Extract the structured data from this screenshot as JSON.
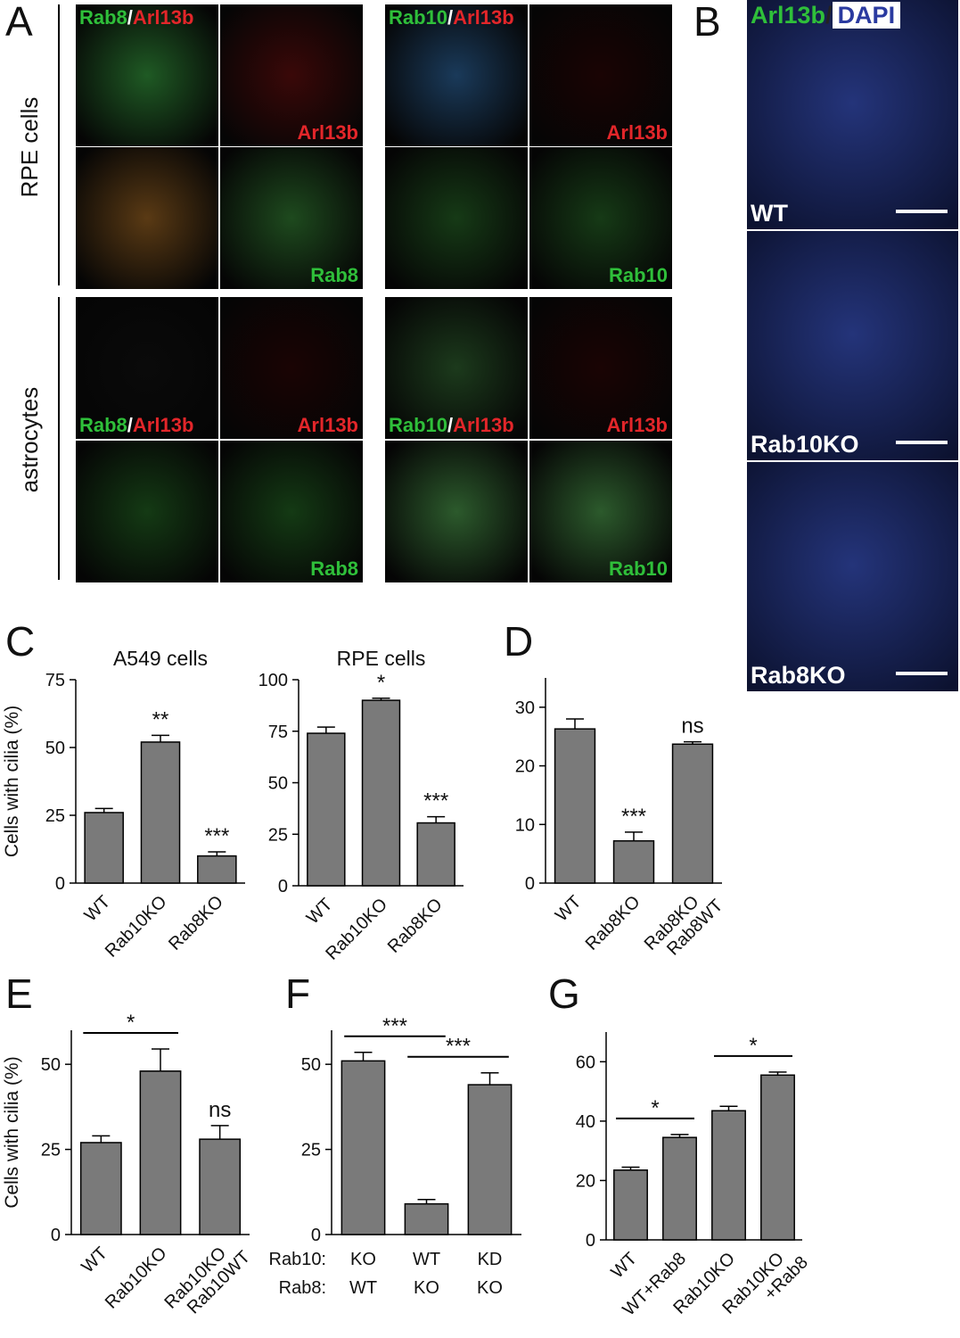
{
  "figure_a": {
    "letter": "A",
    "row_labels": [
      "RPE cells",
      "astrocytes"
    ],
    "groups": [
      {
        "tiles": [
          {
            "tint": "#1f5a24",
            "label": [
              "Rab8",
              "/",
              "Arl13b"
            ],
            "label_colors": [
              "#2fbf3a",
              "#ffffff",
              "#e3262a"
            ],
            "corner": "top-left"
          },
          {
            "tint": "#3a0808",
            "label": [
              "Arl13b"
            ],
            "label_colors": [
              "#e3262a"
            ],
            "corner": "bottom-right"
          },
          {
            "tint": "#5a3a14"
          },
          {
            "tint": "#1e4a1e",
            "label": [
              "Rab8"
            ],
            "label_colors": [
              "#2fbf3a"
            ],
            "corner": "bottom-right"
          },
          {
            "tint": "#0a0a0a",
            "label": [
              "Rab8",
              "/",
              "Arl13b"
            ],
            "label_colors": [
              "#2fbf3a",
              "#ffffff",
              "#e3262a"
            ],
            "corner": "bottom-left"
          },
          {
            "tint": "#1a0404",
            "label": [
              "Arl13b"
            ],
            "label_colors": [
              "#e3262a"
            ],
            "corner": "bottom-right"
          },
          {
            "tint": "#143a14"
          },
          {
            "tint": "#143a14",
            "label": [
              "Rab8"
            ],
            "label_colors": [
              "#2fbf3a"
            ],
            "corner": "bottom-right"
          }
        ]
      },
      {
        "tiles": [
          {
            "tint": "#1a3a5a",
            "label": [
              "Rab10",
              "/",
              "Arl13b"
            ],
            "label_colors": [
              "#2fbf3a",
              "#ffffff",
              "#e3262a"
            ],
            "corner": "top-left"
          },
          {
            "tint": "#1a0404",
            "label": [
              "Arl13b"
            ],
            "label_colors": [
              "#e3262a"
            ],
            "corner": "bottom-right"
          },
          {
            "tint": "#163a16"
          },
          {
            "tint": "#163a16",
            "label": [
              "Rab10"
            ],
            "label_colors": [
              "#2fbf3a"
            ],
            "corner": "bottom-right"
          },
          {
            "tint": "#1c3a1c",
            "label": [
              "Rab10",
              "/",
              "Arl13b"
            ],
            "label_colors": [
              "#2fbf3a",
              "#ffffff",
              "#e3262a"
            ],
            "corner": "bottom-left"
          },
          {
            "tint": "#1a0404",
            "label": [
              "Arl13b"
            ],
            "label_colors": [
              "#e3262a"
            ],
            "corner": "bottom-right"
          },
          {
            "tint": "#2c5a2c"
          },
          {
            "tint": "#2c5a2c",
            "label": [
              "Rab10"
            ],
            "label_colors": [
              "#2fbf3a"
            ],
            "corner": "bottom-right"
          }
        ]
      }
    ]
  },
  "figure_b": {
    "letter": "B",
    "header": [
      "Arl13b",
      "/",
      "DAPI"
    ],
    "header_colors": [
      "#2fbf3a",
      "#222222",
      "#2a3aa0"
    ],
    "tint": "#24347a",
    "tiles": [
      {
        "label": "WT"
      },
      {
        "label": "Rab10KO"
      },
      {
        "label": "Rab8KO"
      }
    ]
  },
  "chart_data": [
    {
      "type": "bar",
      "panel": "C",
      "title": "A549 cells",
      "y_label": "Cells with cilia (%)",
      "categories": [
        "WT",
        "Rab10KO",
        "Rab8KO"
      ],
      "values": [
        26,
        52,
        10
      ],
      "errors": [
        1.5,
        2.5,
        1.5
      ],
      "annotations": [
        null,
        "**",
        "***"
      ],
      "color": "#7a7a7a",
      "ylim": [
        0,
        75
      ],
      "yticks": [
        0,
        25,
        50,
        75
      ]
    },
    {
      "type": "bar",
      "title": "RPE cells",
      "categories": [
        "WT",
        "Rab10KO",
        "Rab8KO"
      ],
      "values": [
        74,
        90,
        30.5
      ],
      "errors": [
        3,
        1,
        3
      ],
      "annotations": [
        null,
        "*",
        "***"
      ],
      "color": "#7a7a7a",
      "ylim": [
        0,
        100
      ],
      "yticks": [
        0,
        25,
        50,
        75,
        100
      ]
    },
    {
      "type": "bar",
      "panel": "D",
      "categories": [
        "WT",
        "Rab8KO",
        "Rab8KO\nRab8WT"
      ],
      "values": [
        26.3,
        7.2,
        23.7
      ],
      "errors": [
        1.7,
        1.5,
        0.4
      ],
      "annotations": [
        null,
        "***",
        "ns"
      ],
      "color": "#7a7a7a",
      "ylim": [
        0,
        35
      ],
      "yticks": [
        0,
        10,
        20,
        30
      ]
    },
    {
      "type": "bar",
      "panel": "E",
      "y_label": "Cells with cilia (%)",
      "categories": [
        "WT",
        "Rab10KO",
        "Rab10KO\nRab10WT"
      ],
      "values": [
        27,
        48,
        28
      ],
      "errors": [
        2,
        6.5,
        4
      ],
      "annotations": [
        null,
        null,
        "ns"
      ],
      "brackets": [
        {
          "from": 0,
          "to": 1,
          "label": "*"
        }
      ],
      "color": "#7a7a7a",
      "ylim": [
        0,
        60
      ],
      "yticks": [
        0,
        25,
        50
      ]
    },
    {
      "type": "bar",
      "panel": "F",
      "category_rows": [
        {
          "name": "Rab10:",
          "values": [
            "KO",
            "WT",
            "KD"
          ]
        },
        {
          "name": "Rab8:",
          "values": [
            "WT",
            "KO",
            "KO"
          ]
        }
      ],
      "values": [
        51,
        9,
        44
      ],
      "errors": [
        2.5,
        1.3,
        3.5
      ],
      "brackets": [
        {
          "from": 0,
          "to": 1,
          "label": "***"
        },
        {
          "from": 1,
          "to": 2,
          "label": "***"
        }
      ],
      "color": "#7a7a7a",
      "ylim": [
        0,
        60
      ],
      "yticks": [
        0,
        25,
        50
      ]
    },
    {
      "type": "bar",
      "panel": "G",
      "categories": [
        "WT",
        "WT+Rab8",
        "Rab10KO",
        "Rab10KO\n+Rab8"
      ],
      "values": [
        23.5,
        34.5,
        43.5,
        55.5
      ],
      "errors": [
        1,
        1,
        1.5,
        1
      ],
      "brackets": [
        {
          "from": 0,
          "to": 1,
          "label": "*"
        },
        {
          "from": 2,
          "to": 3,
          "label": "*"
        }
      ],
      "color": "#7a7a7a",
      "ylim": [
        0,
        70
      ],
      "yticks": [
        0,
        20,
        40,
        60
      ]
    }
  ]
}
